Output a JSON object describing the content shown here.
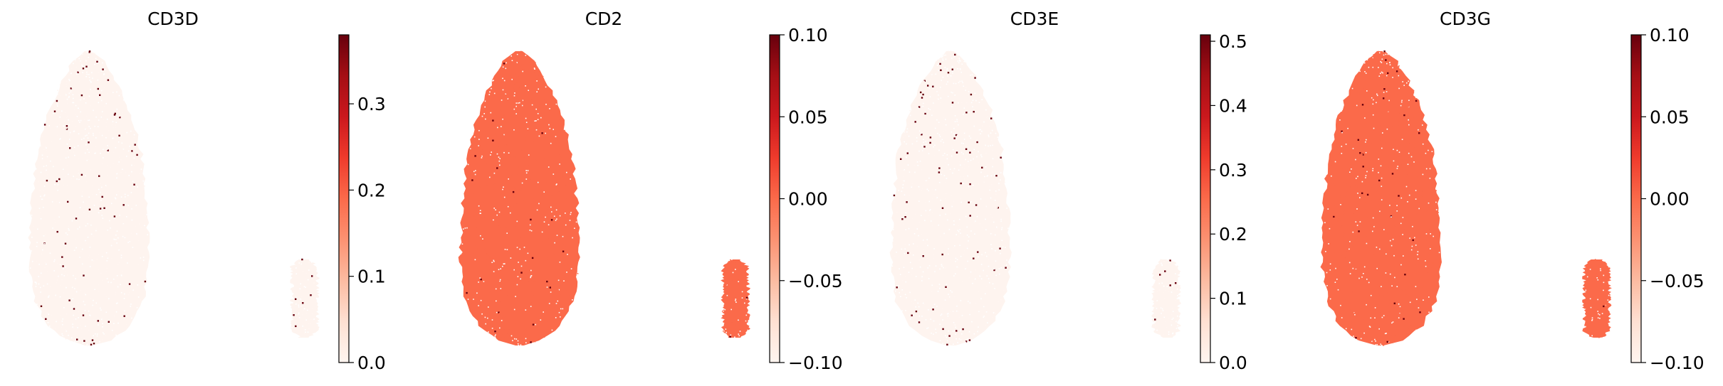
{
  "chart_data": [
    {
      "type": "scatter",
      "title": "CD3D",
      "colormap": "Reds",
      "colorbar": {
        "min": 0.0,
        "max": 0.38,
        "ticks": [
          0.0,
          0.1,
          0.2,
          0.3
        ],
        "tick_labels": [
          "0.0",
          "0.1",
          "0.2",
          "0.3"
        ]
      },
      "points": {
        "mode": "sparse",
        "background_value": 0.0,
        "high_cell_fraction": 0.02,
        "high_value": 0.38
      },
      "axes": "none",
      "grid": false
    },
    {
      "type": "scatter",
      "title": "CD2",
      "colormap": "Reds",
      "colorbar": {
        "min": -0.1,
        "max": 0.1,
        "ticks": [
          -0.1,
          -0.05,
          0.0,
          0.05,
          0.1
        ],
        "tick_labels": [
          "−0.10",
          "−0.05",
          "0.00",
          "0.05",
          "0.10"
        ]
      },
      "points": {
        "mode": "uniform",
        "background_value": 0.0,
        "high_cell_fraction": 0.006,
        "high_value": 0.1
      },
      "axes": "none",
      "grid": false
    },
    {
      "type": "scatter",
      "title": "CD3E",
      "colormap": "Reds",
      "colorbar": {
        "min": 0.0,
        "max": 0.51,
        "ticks": [
          0.0,
          0.1,
          0.2,
          0.3,
          0.4,
          0.5
        ],
        "tick_labels": [
          "0.0",
          "0.1",
          "0.2",
          "0.3",
          "0.4",
          "0.5"
        ]
      },
      "points": {
        "mode": "sparse",
        "background_value": 0.0,
        "high_cell_fraction": 0.02,
        "high_value": 0.51
      },
      "axes": "none",
      "grid": false
    },
    {
      "type": "scatter",
      "title": "CD3G",
      "colormap": "Reds",
      "colorbar": {
        "min": -0.1,
        "max": 0.1,
        "ticks": [
          -0.1,
          -0.05,
          0.0,
          0.05,
          0.1
        ],
        "tick_labels": [
          "−0.10",
          "−0.05",
          "0.00",
          "0.05",
          "0.10"
        ]
      },
      "points": {
        "mode": "uniform",
        "background_value": 0.0,
        "high_cell_fraction": 0.006,
        "high_value": 0.1
      },
      "axes": "none",
      "grid": false
    }
  ]
}
